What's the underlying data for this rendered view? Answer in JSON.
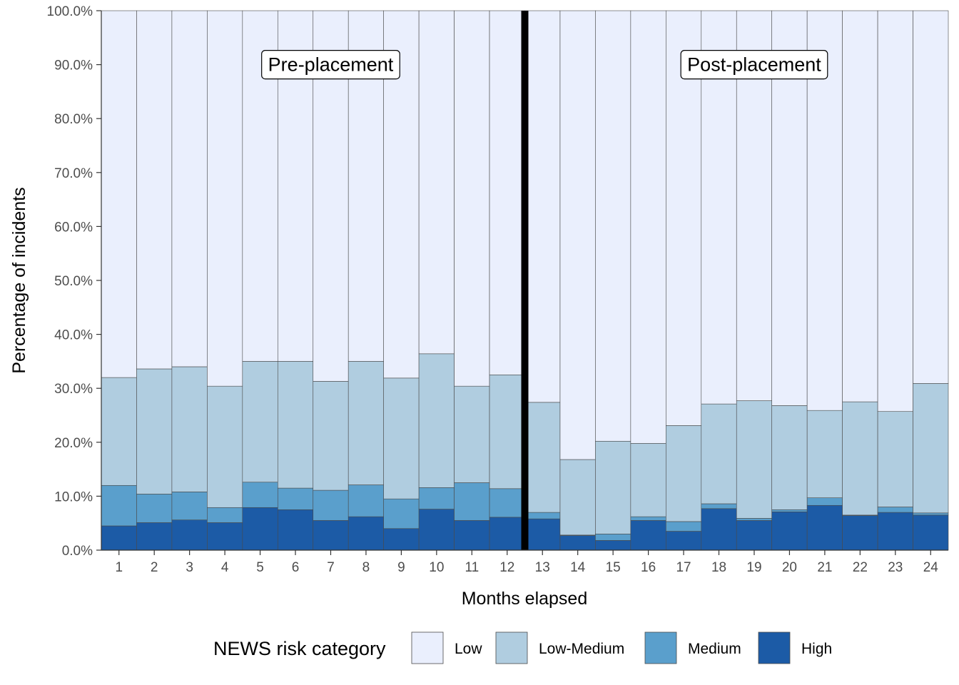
{
  "chart_data": {
    "type": "bar",
    "stacked": true,
    "xlabel": "Months elapsed",
    "ylabel": "Percentage of incidents",
    "ylim": [
      0,
      100
    ],
    "yticks": [
      "0.0%",
      "10.0%",
      "20.0%",
      "30.0%",
      "40.0%",
      "50.0%",
      "60.0%",
      "70.0%",
      "80.0%",
      "90.0%",
      "100.0%"
    ],
    "categories": [
      "1",
      "2",
      "3",
      "4",
      "5",
      "6",
      "7",
      "8",
      "9",
      "10",
      "11",
      "12",
      "13",
      "14",
      "15",
      "16",
      "17",
      "18",
      "19",
      "20",
      "21",
      "22",
      "23",
      "24"
    ],
    "series": [
      {
        "name": "High",
        "color": "#1c5ba6",
        "values": [
          4.5,
          5.1,
          5.6,
          5.1,
          7.9,
          7.5,
          5.5,
          6.2,
          4.0,
          7.6,
          5.5,
          6.1,
          5.8,
          2.7,
          1.8,
          5.5,
          3.5,
          7.7,
          5.5,
          7.1,
          8.3,
          6.4,
          7.0,
          6.5
        ]
      },
      {
        "name": "Medium",
        "color": "#5a9fcc",
        "values": [
          7.5,
          5.3,
          5.2,
          2.8,
          4.7,
          4.0,
          5.6,
          5.9,
          5.5,
          4.0,
          7.0,
          5.3,
          1.2,
          0.1,
          1.2,
          0.7,
          1.8,
          0.9,
          0.4,
          0.4,
          1.4,
          0.1,
          1.0,
          0.4
        ]
      },
      {
        "name": "Low-Medium",
        "color": "#b0cde0",
        "values": [
          20.0,
          23.2,
          23.2,
          22.5,
          22.4,
          23.5,
          20.2,
          22.9,
          22.4,
          24.8,
          17.9,
          21.1,
          20.4,
          14.0,
          17.2,
          13.6,
          17.8,
          18.5,
          21.8,
          19.3,
          16.2,
          21.0,
          17.7,
          24.0
        ]
      },
      {
        "name": "Low",
        "color": "#eaeffd",
        "values": [
          68.0,
          66.4,
          66.0,
          69.6,
          65.0,
          65.0,
          68.7,
          65.0,
          68.1,
          63.6,
          69.6,
          67.5,
          72.6,
          83.2,
          79.8,
          80.2,
          76.9,
          72.9,
          72.3,
          73.2,
          74.1,
          72.5,
          74.3,
          69.1
        ]
      }
    ],
    "divider_after_category": "12",
    "annotations": [
      {
        "text": "Pre-placement",
        "x_category_position": 6.5,
        "y": 90
      },
      {
        "text": "Post-placement",
        "x_category_position": 18.5,
        "y": 90
      }
    ],
    "legend": {
      "title": "NEWS risk category",
      "placement": "bottom",
      "entries": [
        "Low",
        "Low-Medium",
        "Medium",
        "High"
      ]
    },
    "grid": false
  }
}
